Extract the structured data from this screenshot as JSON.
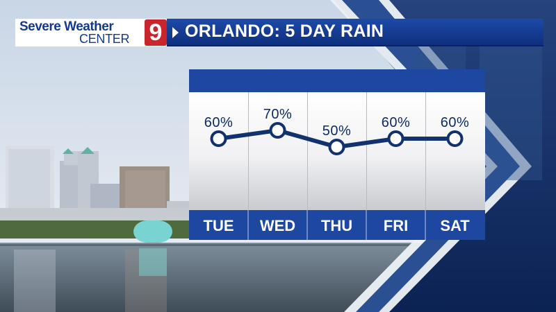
{
  "header": {
    "logo_line1": "Severe Weather",
    "logo_line2": "CENTER",
    "logo_number": "9",
    "title": "ORLANDO: 5 DAY RAIN"
  },
  "chart_data": {
    "type": "line",
    "title": "ORLANDO: 5 DAY RAIN",
    "categories": [
      "TUE",
      "WED",
      "THU",
      "FRI",
      "SAT"
    ],
    "series": [
      {
        "values": [
          60,
          70,
          50,
          60,
          60
        ]
      }
    ],
    "value_labels": [
      "60%",
      "70%",
      "50%",
      "60%",
      "60%"
    ],
    "ylim": [
      0,
      100
    ],
    "grid": false
  },
  "colors": {
    "header_blue": "#1e47a2",
    "line_navy": "#12326e",
    "logo_red": "#c8262c"
  }
}
